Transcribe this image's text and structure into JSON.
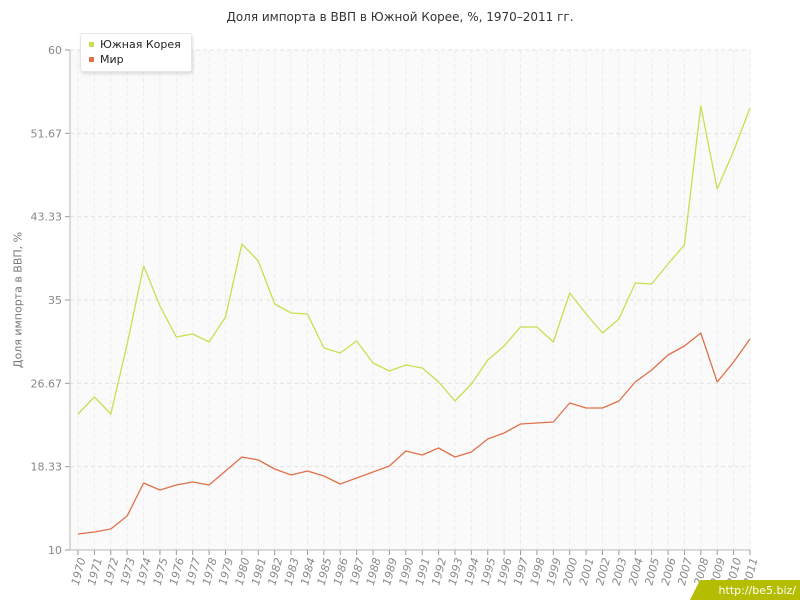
{
  "title": "Доля импорта в ВВП в Южной Корее, %, 1970–2011 гг.",
  "watermark": "http://be5.biz/",
  "chart_data": {
    "type": "line",
    "title": "Доля импорта в ВВП в Южной Корее, %, 1970–2011 гг.",
    "xlabel": "",
    "ylabel": "Доля импорта в ВВП, %",
    "ylim": [
      10,
      60
    ],
    "yticks": [
      "10",
      "18.33",
      "26.67",
      "35",
      "43.33",
      "51.67",
      "60"
    ],
    "grid": true,
    "legend_position": "top-left",
    "categories": [
      "1970",
      "1971",
      "1972",
      "1973",
      "1974",
      "1975",
      "1976",
      "1977",
      "1978",
      "1979",
      "1980",
      "1981",
      "1982",
      "1983",
      "1984",
      "1985",
      "1986",
      "1987",
      "1988",
      "1989",
      "1990",
      "1991",
      "1992",
      "1993",
      "1994",
      "1995",
      "1996",
      "1997",
      "1998",
      "1999",
      "2000",
      "2001",
      "2002",
      "2003",
      "2004",
      "2005",
      "2006",
      "2007",
      "2008",
      "2009",
      "2010",
      "2011"
    ],
    "series": [
      {
        "name": "Южная Корея",
        "color": "#c8df52",
        "values": [
          23.6,
          25.3,
          23.6,
          30.6,
          38.4,
          34.4,
          31.3,
          31.6,
          30.8,
          33.3,
          40.6,
          38.9,
          34.6,
          33.7,
          33.6,
          30.2,
          29.7,
          30.9,
          28.7,
          27.9,
          28.5,
          28.2,
          26.8,
          24.9,
          26.6,
          29.0,
          30.4,
          32.3,
          32.3,
          30.8,
          35.7,
          33.6,
          31.7,
          33.1,
          36.7,
          36.6,
          38.6,
          40.5,
          54.4,
          46.1,
          49.9,
          54.2
        ]
      },
      {
        "name": "Мир",
        "color": "#e0714a",
        "values": [
          11.6,
          11.8,
          12.1,
          13.4,
          16.7,
          16.0,
          16.5,
          16.8,
          16.5,
          17.9,
          19.3,
          19.0,
          18.1,
          17.5,
          17.9,
          17.4,
          16.6,
          17.2,
          17.8,
          18.4,
          19.9,
          19.5,
          20.2,
          19.3,
          19.8,
          21.1,
          21.7,
          22.6,
          22.7,
          22.8,
          24.7,
          24.2,
          24.2,
          24.9,
          26.8,
          28.0,
          29.5,
          30.4,
          31.7,
          26.8,
          28.8,
          31.1
        ]
      }
    ]
  }
}
